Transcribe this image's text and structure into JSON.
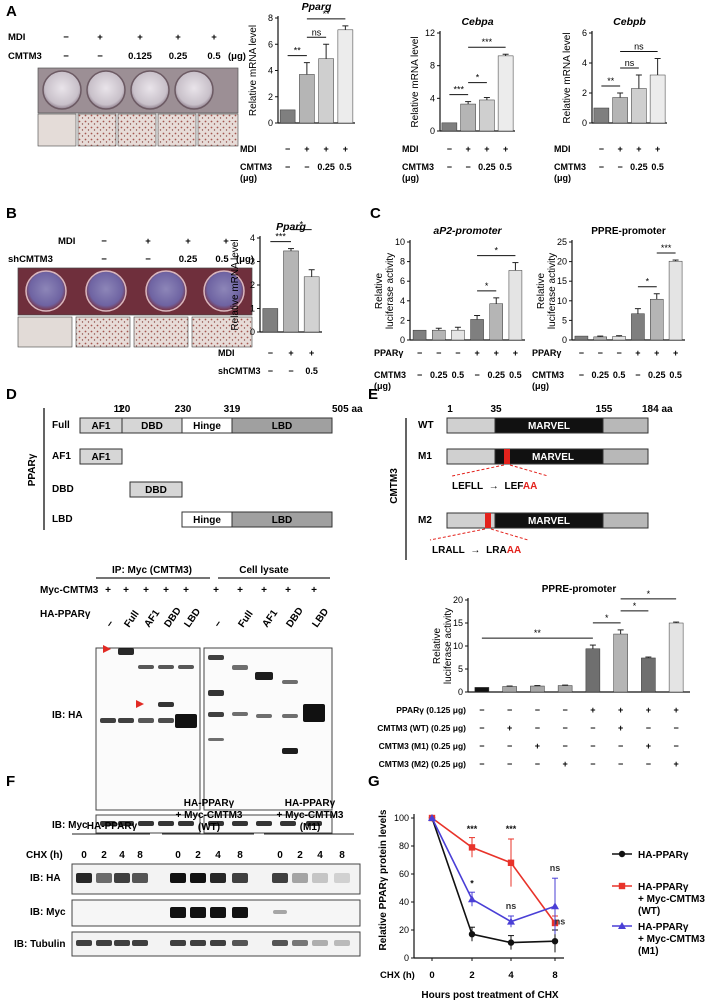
{
  "panelA": {
    "label": "A",
    "rows": [
      {
        "name": "MDI",
        "values": [
          "−",
          "+",
          "+",
          "+",
          "+"
        ],
        "unit": ""
      },
      {
        "name": "CMTM3",
        "values": [
          "−",
          "−",
          "0.125",
          "0.25",
          "0.5"
        ],
        "unit": "(μg)"
      }
    ]
  },
  "panelB": {
    "label": "B",
    "rows": [
      {
        "name": "MDI",
        "values": [
          "−",
          "+",
          "+",
          "+"
        ],
        "unit": ""
      },
      {
        "name": "shCMTM3",
        "values": [
          "−",
          "−",
          "0.25",
          "0.5"
        ],
        "unit": "(μg)"
      }
    ]
  },
  "panelC": {
    "label": "C"
  },
  "panelD": {
    "label": "D",
    "group_label": "PPARγ",
    "domain_positions": [
      "1",
      "120",
      "230",
      "319",
      "505 aa"
    ],
    "constructs": [
      {
        "name": "Full",
        "domains": [
          "AF1",
          "DBD",
          "Hinge",
          "LBD"
        ]
      },
      {
        "name": "AF1",
        "domains": [
          "AF1"
        ]
      },
      {
        "name": "DBD",
        "domains": [
          "DBD"
        ]
      },
      {
        "name": "LBD",
        "domains": [
          "Hinge",
          "LBD"
        ]
      }
    ],
    "blot": {
      "ip_header": "IP: Myc (CMTM3)",
      "lysate_header": "Cell lysate",
      "myc_row_label": "Myc-CMTM3",
      "myc_values": [
        "+",
        "+",
        "+",
        "+",
        "+"
      ],
      "ha_row_label": "HA-PPARγ",
      "lanes": [
        "−",
        "Full",
        "AF1",
        "DBD",
        "LBD"
      ],
      "ib_ha": "IB: HA",
      "ib_myc": "IB: Myc"
    }
  },
  "panelE": {
    "label": "E",
    "group_label": "CMTM3",
    "positions": [
      "1",
      "35",
      "155",
      "184 aa"
    ],
    "constructs": [
      {
        "name": "WT",
        "domain": "MARVEL"
      },
      {
        "name": "M1",
        "domain": "MARVEL",
        "mutation_from": "LEFLL",
        "mutation_to_prefix": "LEF",
        "mutation_to_suffix": "AA"
      },
      {
        "name": "M2",
        "domain": "MARVEL",
        "mutation_from": "LRALL",
        "mutation_to_prefix": "LRA",
        "mutation_to_suffix": "AA"
      }
    ],
    "arrow": "→"
  },
  "panelF": {
    "label": "F",
    "groups": [
      "HA-PPARγ",
      "HA-PPARγ|+ Myc-CMTM3|(WT)",
      "HA-PPARγ|+ Myc-CMTM3|(M1)"
    ],
    "chx_label": "CHX (h)",
    "timepoints": [
      "0",
      "2",
      "4",
      "8"
    ],
    "rows": [
      "IB: HA",
      "IB: Myc",
      "IB: Tubulin"
    ]
  },
  "panelG": {
    "label": "G"
  },
  "chart_data": [
    {
      "type": "bar",
      "id": "A-pparg",
      "title": "Pparg",
      "ylabel": "Relative mRNA level",
      "ylim": [
        0,
        8
      ],
      "yticks": [
        "0",
        "2",
        "4",
        "6",
        "8"
      ],
      "values": [
        1,
        3.7,
        4.9,
        7.1
      ],
      "errors": [
        0,
        0.9,
        1.1,
        0.3
      ],
      "conditions": [
        {
          "name": "MDI",
          "values": [
            "−",
            "+",
            "+",
            "+"
          ]
        },
        {
          "name": "CMTM3|(μg)",
          "values": [
            "−",
            "−",
            "0.25",
            "0.5"
          ]
        }
      ],
      "sig": [
        {
          "a": 0,
          "b": 1,
          "t": "**"
        },
        {
          "a": 1,
          "b": 2,
          "t": "ns"
        },
        {
          "a": 1,
          "b": 3,
          "t": "**"
        }
      ]
    },
    {
      "type": "bar",
      "id": "A-cebpa",
      "title": "Cebpa",
      "ylabel": "Relative mRNA level",
      "ylim": [
        0,
        12
      ],
      "yticks": [
        "0",
        "4",
        "8",
        "12"
      ],
      "values": [
        1,
        3.3,
        3.8,
        9.2
      ],
      "errors": [
        0,
        0.3,
        0.3,
        0.2
      ],
      "conditions": [
        {
          "name": "MDI",
          "values": [
            "−",
            "+",
            "+",
            "+"
          ]
        },
        {
          "name": "CMTM3|(μg)",
          "values": [
            "−",
            "−",
            "0.25",
            "0.5"
          ]
        }
      ],
      "sig": [
        {
          "a": 0,
          "b": 1,
          "t": "***"
        },
        {
          "a": 1,
          "b": 2,
          "t": "*"
        },
        {
          "a": 1,
          "b": 3,
          "t": "***"
        }
      ]
    },
    {
      "type": "bar",
      "id": "A-cebpb",
      "title": "Cebpb",
      "ylabel": "Relative mRNA level",
      "ylim": [
        0,
        6
      ],
      "yticks": [
        "0",
        "2",
        "4",
        "6"
      ],
      "values": [
        1,
        1.7,
        2.3,
        3.2
      ],
      "errors": [
        0,
        0.3,
        0.9,
        1.1
      ],
      "conditions": [
        {
          "name": "MDI",
          "values": [
            "−",
            "+",
            "+",
            "+"
          ]
        },
        {
          "name": "CMTM3|(μg)",
          "values": [
            "−",
            "−",
            "0.25",
            "0.5"
          ]
        }
      ],
      "sig": [
        {
          "a": 0,
          "b": 1,
          "t": "**"
        },
        {
          "a": 1,
          "b": 2,
          "t": "ns"
        },
        {
          "a": 1,
          "b": 3,
          "t": "ns"
        }
      ]
    },
    {
      "type": "bar",
      "id": "B-pparg",
      "title": "Pparg",
      "ylabel": "Relative mRNA level",
      "ylim": [
        0,
        4
      ],
      "yticks": [
        "0",
        "1",
        "2",
        "3",
        "4"
      ],
      "values": [
        1,
        3.45,
        2.35
      ],
      "errors": [
        0,
        0.1,
        0.3
      ],
      "conditions": [
        {
          "name": "MDI",
          "values": [
            "−",
            "+",
            "+"
          ]
        },
        {
          "name": "shCMTM3",
          "values": [
            "−",
            "−",
            "0.5"
          ]
        }
      ],
      "sig": [
        {
          "a": 0,
          "b": 1,
          "t": "***"
        },
        {
          "a": 1,
          "b": 2,
          "t": "*"
        }
      ]
    },
    {
      "type": "bar",
      "id": "C-ap2",
      "title": "aP2-promoter",
      "ylabel": "Relative|luciferase activity",
      "ylim": [
        0,
        10
      ],
      "yticks": [
        "0",
        "2",
        "4",
        "6",
        "8",
        "10"
      ],
      "values": [
        1,
        1,
        1,
        2.1,
        3.7,
        7.1
      ],
      "errors": [
        0,
        0.2,
        0.3,
        0.4,
        0.6,
        0.8
      ],
      "conditions": [
        {
          "name": "PPARγ",
          "values": [
            "−",
            "−",
            "−",
            "+",
            "+",
            "+"
          ]
        },
        {
          "name": "CMTM3|(μg)",
          "values": [
            "−",
            "0.25",
            "0.5",
            "−",
            "0.25",
            "0.5"
          ]
        }
      ],
      "sig": [
        {
          "a": 3,
          "b": 4,
          "t": "*"
        },
        {
          "a": 3,
          "b": 5,
          "t": "*"
        }
      ]
    },
    {
      "type": "bar",
      "id": "C-ppre",
      "title": "PPRE-promoter",
      "ylabel": "Relative|luciferase activity",
      "ylim": [
        0,
        25
      ],
      "yticks": [
        "0",
        "5",
        "10",
        "15",
        "20",
        "25"
      ],
      "values": [
        1,
        0.8,
        0.9,
        6.7,
        10.4,
        20.1
      ],
      "errors": [
        0,
        0.2,
        0.2,
        1.3,
        1.4,
        0.3
      ],
      "conditions": [
        {
          "name": "PPARγ",
          "values": [
            "−",
            "−",
            "−",
            "+",
            "+",
            "+"
          ]
        },
        {
          "name": "CMTM3|(μg)",
          "values": [
            "−",
            "0.25",
            "0.5",
            "−",
            "0.25",
            "0.5"
          ]
        }
      ],
      "sig": [
        {
          "a": 3,
          "b": 4,
          "t": "*"
        },
        {
          "a": 4,
          "b": 5,
          "t": "***"
        }
      ]
    },
    {
      "type": "bar",
      "id": "E-ppre",
      "title": "PPRE-promoter",
      "ylabel": "Relative|luciferase activity",
      "ylim": [
        0,
        20
      ],
      "yticks": [
        "0",
        "5",
        "10",
        "15",
        "20"
      ],
      "values": [
        1,
        1.2,
        1.3,
        1.4,
        9.4,
        12.6,
        7.4,
        15
      ],
      "errors": [
        0,
        0.1,
        0.1,
        0.1,
        0.8,
        0.9,
        0.2,
        0.2
      ],
      "conditions": [
        {
          "name": "PPARγ (0.125 μg)",
          "values": [
            "−",
            "−",
            "−",
            "−",
            "+",
            "+",
            "+",
            "+"
          ]
        },
        {
          "name": "CMTM3 (WT) (0.25 μg)",
          "values": [
            "−",
            "+",
            "−",
            "−",
            "−",
            "+",
            "−",
            "−"
          ]
        },
        {
          "name": "CMTM3 (M1) (0.25 μg)",
          "values": [
            "−",
            "−",
            "+",
            "−",
            "−",
            "−",
            "+",
            "−"
          ]
        },
        {
          "name": "CMTM3 (M2) (0.25 μg)",
          "values": [
            "−",
            "−",
            "−",
            "+",
            "−",
            "−",
            "−",
            "+"
          ]
        }
      ],
      "sig": [
        {
          "a": 0,
          "b": 4,
          "t": "**"
        },
        {
          "a": 4,
          "b": 5,
          "t": "*"
        },
        {
          "a": 5,
          "b": 6,
          "t": "*"
        },
        {
          "a": 5,
          "b": 7,
          "t": "*"
        }
      ]
    },
    {
      "type": "line",
      "id": "G-decay",
      "ylabel": "Relative PPARγ protein levels",
      "xlabel": "Hours post treatment of CHX",
      "x_prefix": "CHX (h)",
      "x": [
        0,
        2,
        4,
        8
      ],
      "ylim": [
        0,
        100
      ],
      "yticks": [
        "0",
        "20",
        "40",
        "60",
        "80",
        "100"
      ],
      "series": [
        {
          "name": "HA-PPARγ",
          "color": "#111111",
          "marker": "circle",
          "values": [
            100,
            17,
            11,
            12
          ],
          "errors": [
            0,
            5,
            5,
            8
          ]
        },
        {
          "name": "HA-PPARγ|+ Myc-CMTM3|(WT)",
          "color": "#e8332a",
          "marker": "square",
          "values": [
            100,
            79,
            68,
            25
          ],
          "errors": [
            0,
            7,
            17,
            5
          ]
        },
        {
          "name": "HA-PPARγ|+ Myc-CMTM3|(M1)",
          "color": "#4a3fd6",
          "marker": "triangle",
          "values": [
            100,
            42,
            26,
            37
          ],
          "errors": [
            0,
            5,
            4,
            20
          ]
        }
      ],
      "annotations": [
        {
          "x": 2,
          "y": 90,
          "t": "***",
          "color": "#111"
        },
        {
          "x": 4,
          "y": 90,
          "t": "***",
          "color": "#111"
        },
        {
          "x": 2,
          "y": 51,
          "t": "*",
          "color": "#111"
        },
        {
          "x": 4,
          "y": 35,
          "t": "ns",
          "color": "#333"
        },
        {
          "x": 8,
          "y": 62,
          "t": "ns",
          "color": "#333"
        },
        {
          "x": 8.6,
          "y": 24,
          "t": "ns",
          "color": "#333"
        }
      ]
    }
  ]
}
